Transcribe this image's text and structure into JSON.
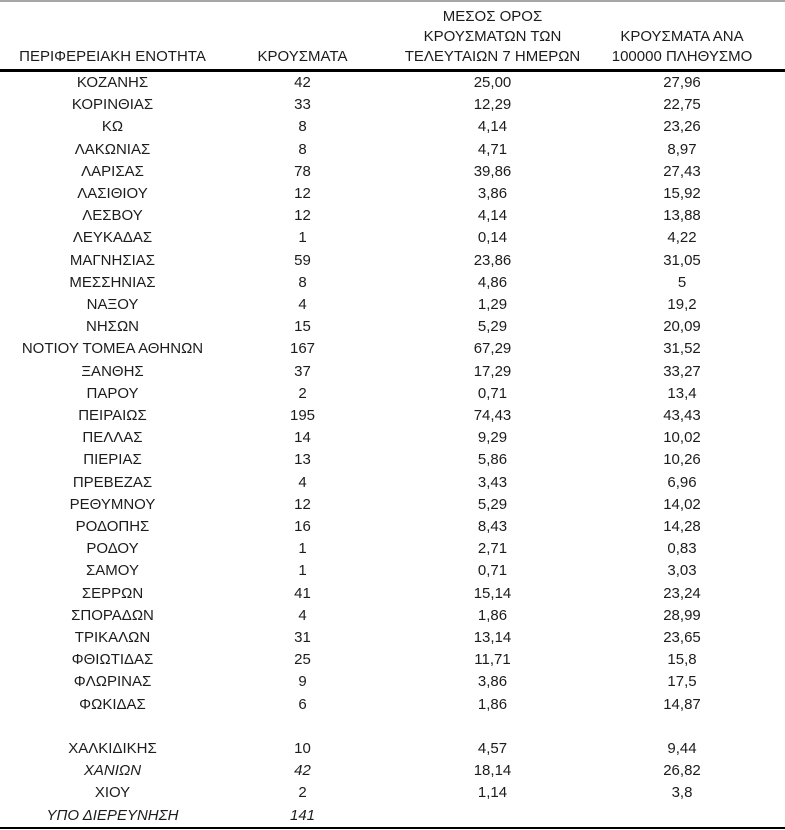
{
  "page": {
    "background": "#ffffff",
    "text_color": "#1c1c1c",
    "top_rule_color": "#a6a6a6",
    "rule_color": "#000000"
  },
  "table": {
    "columns": [
      {
        "id": "region",
        "label_lines": [
          "ΠΕΡΙΦΕΡΕΙΑΚΗ ΕΝΟΤΗΤΑ"
        ]
      },
      {
        "id": "cases",
        "label_lines": [
          "ΚΡΟΥΣΜΑΤΑ"
        ]
      },
      {
        "id": "avg7",
        "label_lines": [
          "ΜΕΣΟΣ ΟΡΟΣ",
          "ΚΡΟΥΣΜΑΤΩΝ ΤΩΝ",
          "ΤΕΛΕΥΤΑΙΩΝ 7 ΗΜΕΡΩΝ"
        ]
      },
      {
        "id": "per100k",
        "label_lines": [
          "ΚΡΟΥΣΜΑΤΑ ΑΝΑ",
          "100000 ΠΛΗΘΥΣΜΟ"
        ]
      }
    ],
    "rows": [
      {
        "cells": [
          "ΚΟΖΑΝΗΣ",
          "42",
          "25,00",
          "27,96"
        ]
      },
      {
        "cells": [
          "ΚΟΡΙΝΘΙΑΣ",
          "33",
          "12,29",
          "22,75"
        ]
      },
      {
        "cells": [
          "ΚΩ",
          "8",
          "4,14",
          "23,26"
        ]
      },
      {
        "cells": [
          "ΛΑΚΩΝΙΑΣ",
          "8",
          "4,71",
          "8,97"
        ]
      },
      {
        "cells": [
          "ΛΑΡΙΣΑΣ",
          "78",
          "39,86",
          "27,43"
        ]
      },
      {
        "cells": [
          "ΛΑΣΙΘΙΟΥ",
          "12",
          "3,86",
          "15,92"
        ]
      },
      {
        "cells": [
          "ΛΕΣΒΟΥ",
          "12",
          "4,14",
          "13,88"
        ]
      },
      {
        "cells": [
          "ΛΕΥΚΑΔΑΣ",
          "1",
          "0,14",
          "4,22"
        ]
      },
      {
        "cells": [
          "ΜΑΓΝΗΣΙΑΣ",
          "59",
          "23,86",
          "31,05"
        ]
      },
      {
        "cells": [
          "ΜΕΣΣΗΝΙΑΣ",
          "8",
          "4,86",
          "5"
        ]
      },
      {
        "cells": [
          "ΝΑΞΟΥ",
          "4",
          "1,29",
          "19,2"
        ]
      },
      {
        "cells": [
          "ΝΗΣΩΝ",
          "15",
          "5,29",
          "20,09"
        ]
      },
      {
        "cells": [
          "ΝΟΤΙΟΥ ΤΟΜΕΑ ΑΘΗΝΩΝ",
          "167",
          "67,29",
          "31,52"
        ]
      },
      {
        "cells": [
          "ΞΑΝΘΗΣ",
          "37",
          "17,29",
          "33,27"
        ]
      },
      {
        "cells": [
          "ΠΑΡΟΥ",
          "2",
          "0,71",
          "13,4"
        ]
      },
      {
        "cells": [
          "ΠΕΙΡΑΙΩΣ",
          "195",
          "74,43",
          "43,43"
        ]
      },
      {
        "cells": [
          "ΠΕΛΛΑΣ",
          "14",
          "9,29",
          "10,02"
        ]
      },
      {
        "cells": [
          "ΠΙΕΡΙΑΣ",
          "13",
          "5,86",
          "10,26"
        ]
      },
      {
        "cells": [
          "ΠΡΕΒΕΖΑΣ",
          "4",
          "3,43",
          "6,96"
        ]
      },
      {
        "cells": [
          "ΡΕΘΥΜΝΟΥ",
          "12",
          "5,29",
          "14,02"
        ]
      },
      {
        "cells": [
          "ΡΟΔΟΠΗΣ",
          "16",
          "8,43",
          "14,28"
        ]
      },
      {
        "cells": [
          "ΡΟΔΟΥ",
          "1",
          "2,71",
          "0,83"
        ]
      },
      {
        "cells": [
          "ΣΑΜΟΥ",
          "1",
          "0,71",
          "3,03"
        ]
      },
      {
        "cells": [
          "ΣΕΡΡΩΝ",
          "41",
          "15,14",
          "23,24"
        ]
      },
      {
        "cells": [
          "ΣΠΟΡΑΔΩΝ",
          "4",
          "1,86",
          "28,99"
        ]
      },
      {
        "cells": [
          "ΤΡΙΚΑΛΩΝ",
          "31",
          "13,14",
          "23,65"
        ]
      },
      {
        "cells": [
          "ΦΘΙΩΤΙΔΑΣ",
          "25",
          "11,71",
          "15,8"
        ]
      },
      {
        "cells": [
          "ΦΛΩΡΙΝΑΣ",
          "9",
          "3,86",
          "17,5"
        ]
      },
      {
        "cells": [
          "ΦΩΚΙΔΑΣ",
          "6",
          "1,86",
          "14,87"
        ]
      },
      {
        "spacer": true
      },
      {
        "cells": [
          "ΧΑΛΚΙΔΙΚΗΣ",
          "10",
          "4,57",
          "9,44"
        ]
      },
      {
        "cells": [
          "ΧΑΝΙΩΝ",
          "42",
          "18,14",
          "26,82"
        ],
        "italic": [
          0,
          1
        ]
      },
      {
        "cells": [
          "ΧΙΟΥ",
          "2",
          "1,14",
          "3,8"
        ]
      },
      {
        "cells": [
          "ΥΠΟ ΔΙΕΡΕΥΝΗΣΗ",
          "141",
          "",
          ""
        ],
        "italic": [
          0,
          1,
          2,
          3
        ]
      }
    ]
  }
}
